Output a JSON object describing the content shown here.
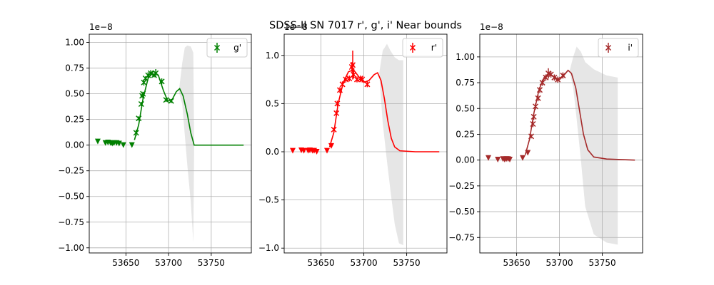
{
  "title": "SDSS-II SN 7017  r', g', i' Near bounds",
  "chart_data": [
    {
      "type": "scatter",
      "legend": "g'",
      "legend_position": "top-right",
      "color": "#008000",
      "offset_label": "1e−8",
      "xlim": [
        53607,
        53797
      ],
      "ylim": [
        -1.05,
        1.08
      ],
      "xticks": [
        53650,
        53700,
        53750
      ],
      "xtick_labels": [
        "53650",
        "53700",
        "53750"
      ],
      "yticks": [
        -1.0,
        -0.75,
        -0.5,
        -0.25,
        0.0,
        0.25,
        0.5,
        0.75,
        1.0
      ],
      "ytick_labels": [
        "−1.00",
        "−0.75",
        "−0.50",
        "−0.25",
        "0.00",
        "0.25",
        "0.50",
        "0.75",
        "1.00"
      ],
      "grid": true,
      "upper_limits": [
        [
          53617,
          0.035
        ],
        [
          53626,
          0.02
        ],
        [
          53629,
          0.025
        ],
        [
          53632,
          0.02
        ],
        [
          53634,
          0.015
        ],
        [
          53636,
          0.02
        ],
        [
          53639,
          0.02
        ],
        [
          53642,
          0.015
        ],
        [
          53647,
          0.0
        ],
        [
          53657,
          0.0
        ]
      ],
      "detections": [
        [
          53662,
          0.12,
          0.03
        ],
        [
          53665,
          0.26,
          0.02
        ],
        [
          53668,
          0.4,
          0.02
        ],
        [
          53669,
          0.48,
          0.02
        ],
        [
          53670,
          0.5,
          0.02
        ],
        [
          53671,
          0.61,
          0.03
        ],
        [
          53673,
          0.65,
          0.02
        ],
        [
          53676,
          0.68,
          0.03
        ],
        [
          53679,
          0.7,
          0.03
        ],
        [
          53683,
          0.68,
          0.02
        ],
        [
          53685,
          0.7,
          0.04
        ],
        [
          53692,
          0.62,
          0.03
        ],
        [
          53697,
          0.44,
          0.02
        ],
        [
          53703,
          0.43,
          0.02
        ]
      ],
      "model_curve": [
        [
          53660,
          0.05
        ],
        [
          53665,
          0.2
        ],
        [
          53670,
          0.45
        ],
        [
          53676,
          0.65
        ],
        [
          53682,
          0.72
        ],
        [
          53688,
          0.68
        ],
        [
          53694,
          0.53
        ],
        [
          53699,
          0.43
        ],
        [
          53704,
          0.44
        ],
        [
          53709,
          0.52
        ],
        [
          53713,
          0.55
        ],
        [
          53717,
          0.48
        ],
        [
          53722,
          0.3
        ],
        [
          53726,
          0.12
        ],
        [
          53730,
          0.0
        ],
        [
          53740,
          0.0
        ],
        [
          53760,
          0.0
        ],
        [
          53788,
          0.0
        ]
      ],
      "band": [
        [
          53712,
          0.52,
          0.52
        ],
        [
          53716,
          0.8,
          0.4
        ],
        [
          53719,
          0.95,
          0.1
        ],
        [
          53722,
          0.97,
          -0.2
        ],
        [
          53726,
          0.96,
          -0.55
        ],
        [
          53729,
          0.9,
          -0.95
        ],
        [
          53730,
          0.0,
          0.0
        ]
      ]
    },
    {
      "type": "scatter",
      "legend": "r'",
      "legend_position": "top-right",
      "color": "#ff0000",
      "offset_label": "1e−8",
      "xlim": [
        53607,
        53797
      ],
      "ylim": [
        -1.05,
        1.22
      ],
      "xticks": [
        53650,
        53700,
        53750
      ],
      "xtick_labels": [
        "53650",
        "53700",
        "53750"
      ],
      "yticks": [
        -1.0,
        -0.5,
        0.0,
        0.5,
        1.0
      ],
      "ytick_labels": [
        "−1.0",
        "−0.5",
        "0.0",
        "0.5",
        "1.0"
      ],
      "grid": true,
      "upper_limits": [
        [
          53617,
          0.01
        ],
        [
          53627,
          0.015
        ],
        [
          53630,
          0.01
        ],
        [
          53635,
          0.01
        ],
        [
          53637,
          0.015
        ],
        [
          53640,
          0.01
        ],
        [
          53642,
          0.01
        ],
        [
          53645,
          0.0
        ],
        [
          53657,
          0.01
        ],
        [
          53662,
          0.06
        ]
      ],
      "detections": [
        [
          53665,
          0.23,
          0.02
        ],
        [
          53668,
          0.4,
          0.03
        ],
        [
          53669,
          0.5,
          0.03
        ],
        [
          53672,
          0.64,
          0.03
        ],
        [
          53675,
          0.7,
          0.03
        ],
        [
          53679,
          0.75,
          0.03
        ],
        [
          53683,
          0.76,
          0.03
        ],
        [
          53686,
          0.88,
          0.05
        ],
        [
          53687,
          0.9,
          0.15
        ],
        [
          53688,
          0.8,
          0.04
        ],
        [
          53692,
          0.75,
          0.03
        ],
        [
          53696,
          0.76,
          0.03
        ],
        [
          53698,
          0.75,
          0.03
        ],
        [
          53704,
          0.7,
          0.03
        ]
      ],
      "model_curve": [
        [
          53660,
          0.05
        ],
        [
          53665,
          0.2
        ],
        [
          53670,
          0.5
        ],
        [
          53676,
          0.72
        ],
        [
          53682,
          0.83
        ],
        [
          53688,
          0.85
        ],
        [
          53694,
          0.78
        ],
        [
          53700,
          0.72
        ],
        [
          53706,
          0.74
        ],
        [
          53712,
          0.8
        ],
        [
          53716,
          0.82
        ],
        [
          53720,
          0.74
        ],
        [
          53724,
          0.55
        ],
        [
          53728,
          0.32
        ],
        [
          53732,
          0.14
        ],
        [
          53736,
          0.05
        ],
        [
          53742,
          0.01
        ],
        [
          53760,
          0.0
        ],
        [
          53788,
          0.0
        ]
      ],
      "band": [
        [
          53718,
          0.82,
          0.8
        ],
        [
          53722,
          1.05,
          0.3
        ],
        [
          53727,
          1.12,
          -0.1
        ],
        [
          53731,
          1.05,
          -0.4
        ],
        [
          53736,
          0.98,
          -0.75
        ],
        [
          53741,
          0.95,
          -0.95
        ],
        [
          53746,
          0.95,
          -0.97
        ]
      ]
    },
    {
      "type": "scatter",
      "legend": "i'",
      "legend_position": "top-right",
      "color": "#a52a2a",
      "offset_label": "1e−8",
      "xlim": [
        53607,
        53797
      ],
      "ylim": [
        -0.9,
        1.22
      ],
      "xticks": [
        53650,
        53700,
        53750
      ],
      "xtick_labels": [
        "53650",
        "53700",
        "53750"
      ],
      "yticks": [
        -0.75,
        -0.5,
        -0.25,
        0.0,
        0.25,
        0.5,
        0.75,
        1.0
      ],
      "ytick_labels": [
        "−0.75",
        "−0.50",
        "−0.25",
        "0.00",
        "0.25",
        "0.50",
        "0.75",
        "1.00"
      ],
      "grid": true,
      "upper_limits": [
        [
          53617,
          0.02
        ],
        [
          53628,
          0.005
        ],
        [
          53634,
          0.01
        ],
        [
          53636,
          0.005
        ],
        [
          53638,
          0.01
        ],
        [
          53640,
          0.01
        ],
        [
          53642,
          0.005
        ],
        [
          53657,
          0.02
        ],
        [
          53663,
          0.07
        ]
      ],
      "detections": [
        [
          53667,
          0.23,
          0.02
        ],
        [
          53669,
          0.35,
          0.03
        ],
        [
          53670,
          0.42,
          0.03
        ],
        [
          53672,
          0.52,
          0.03
        ],
        [
          53675,
          0.6,
          0.03
        ],
        [
          53677,
          0.68,
          0.03
        ],
        [
          53680,
          0.75,
          0.03
        ],
        [
          53684,
          0.8,
          0.03
        ],
        [
          53687,
          0.84,
          0.05
        ],
        [
          53690,
          0.83,
          0.03
        ],
        [
          53694,
          0.8,
          0.03
        ],
        [
          53698,
          0.78,
          0.03
        ],
        [
          53704,
          0.82,
          0.03
        ]
      ],
      "model_curve": [
        [
          53660,
          0.05
        ],
        [
          53665,
          0.2
        ],
        [
          53670,
          0.45
        ],
        [
          53676,
          0.68
        ],
        [
          53682,
          0.8
        ],
        [
          53688,
          0.84
        ],
        [
          53694,
          0.8
        ],
        [
          53700,
          0.78
        ],
        [
          53705,
          0.82
        ],
        [
          53710,
          0.87
        ],
        [
          53714,
          0.84
        ],
        [
          53719,
          0.7
        ],
        [
          53724,
          0.45
        ],
        [
          53728,
          0.25
        ],
        [
          53733,
          0.1
        ],
        [
          53740,
          0.03
        ],
        [
          53755,
          0.01
        ],
        [
          53788,
          0.0
        ]
      ],
      "band": [
        [
          53712,
          0.87,
          0.85
        ],
        [
          53716,
          1.0,
          0.7
        ],
        [
          53720,
          1.1,
          0.4
        ],
        [
          53725,
          1.05,
          0.0
        ],
        [
          53730,
          0.95,
          -0.45
        ],
        [
          53740,
          0.88,
          -0.72
        ],
        [
          53755,
          0.82,
          -0.8
        ],
        [
          53768,
          0.8,
          -0.82
        ]
      ]
    }
  ]
}
